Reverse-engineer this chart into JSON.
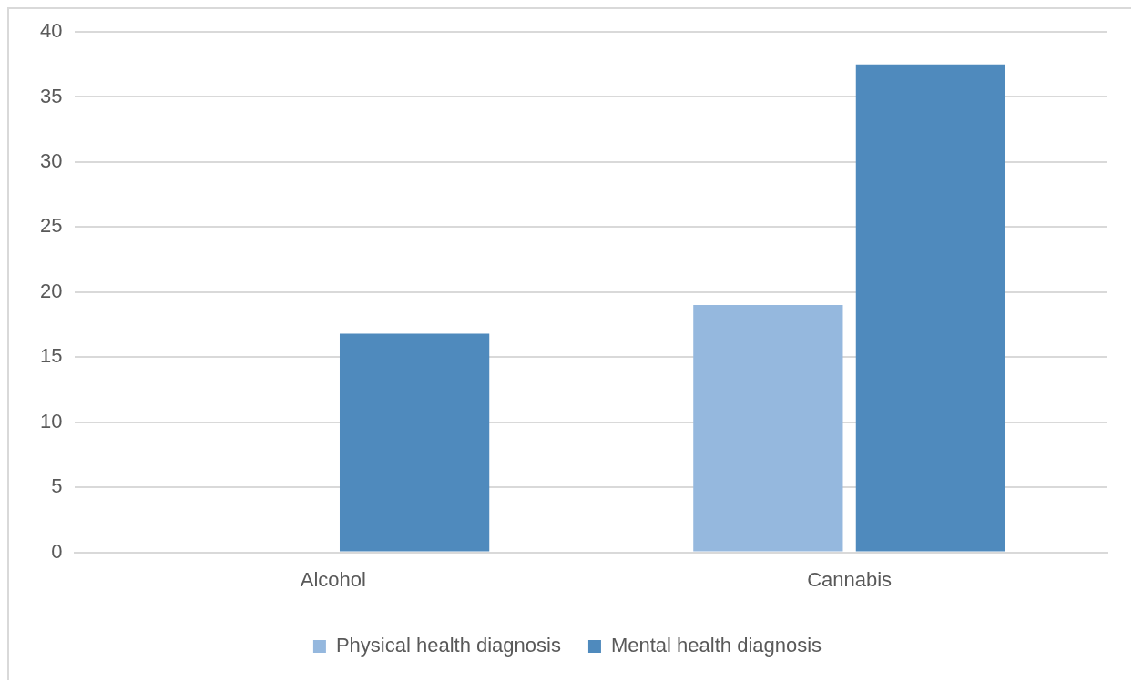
{
  "chart_data": {
    "type": "bar",
    "categories": [
      "Alcohol",
      "Cannabis"
    ],
    "series": [
      {
        "name": "Physical health diagnosis",
        "color": "#95b8de",
        "values": [
          0,
          19
        ]
      },
      {
        "name": "Mental health diagnosis",
        "color": "#4f8abd",
        "values": [
          16.8,
          37.5
        ]
      }
    ],
    "ylim": [
      0,
      40
    ],
    "yticks": [
      0,
      5,
      10,
      15,
      20,
      25,
      30,
      35,
      40
    ],
    "grid": "y",
    "legend": "bottom"
  }
}
